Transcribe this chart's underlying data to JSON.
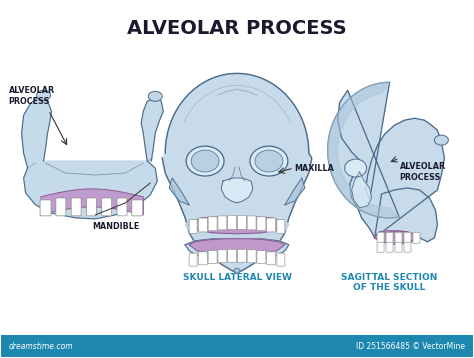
{
  "title": "ALVEOLAR PROCESS",
  "title_color": "#1a1a2e",
  "title_fontsize": 14,
  "title_fontweight": "bold",
  "bg_color": "#ffffff",
  "footer_color": "#1e87b0",
  "footer_text_left": "dreamstime.com",
  "footer_text_right": "ID 251566485 © VectorMine",
  "label_skull_front": "SKULL LATERAL VIEW",
  "label_skull_side": "SAGITTAL SECTION\nOF THE SKULL",
  "label_color": "#1e87b0",
  "label_fontsize": 6.5,
  "bone_fill": "#c2d8e8",
  "bone_fill2": "#a8c4d8",
  "bone_outline": "#4a6a8a",
  "alveolar_fill": "#c090c8",
  "alveolar_outline": "#7a5a8a",
  "cavity_fill": "#d8eaf5",
  "annotation_color": "#1a1a2e",
  "annotation_fontsize": 5.8,
  "line_color": "#333333"
}
